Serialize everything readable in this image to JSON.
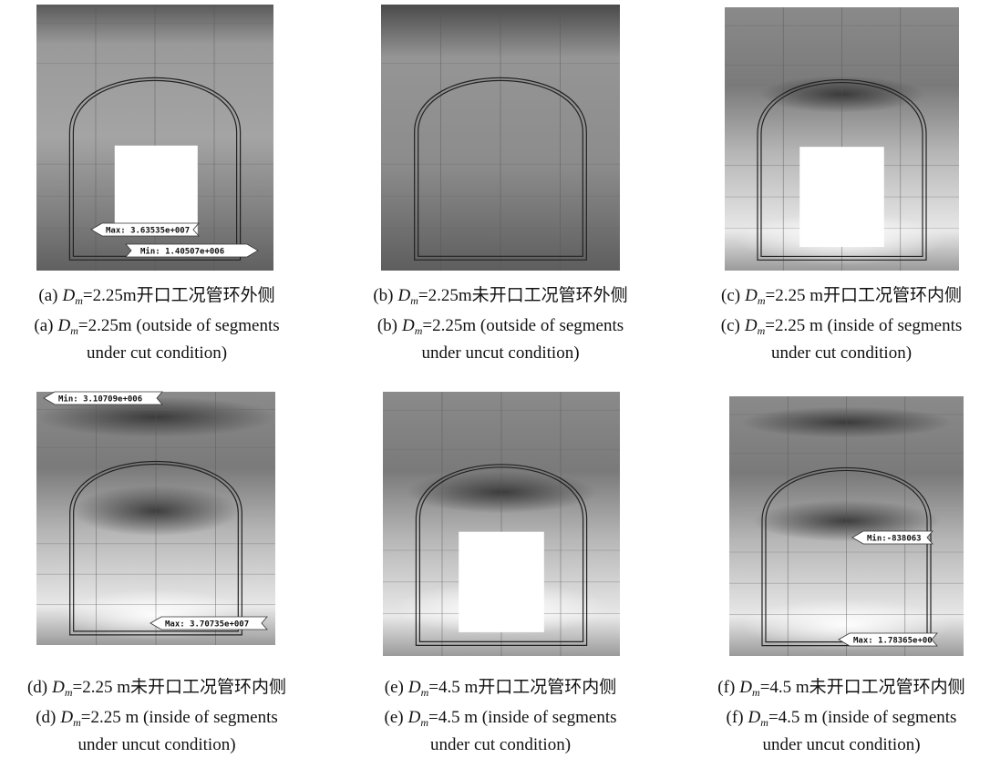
{
  "panels": [
    {
      "caption_cn": [
        "(a)",
        "D",
        "m",
        "=2.25m开口工况管环外侧"
      ],
      "caption_en": [
        "(a)",
        "D",
        "m",
        "=2.25m (outside of segments"
      ],
      "caption_en2": "under cut condition)",
      "labels": [
        "Max: 3.63535e+007",
        "Min: 1.40507e+006"
      ]
    },
    {
      "caption_cn": [
        "(b)",
        "D",
        "m",
        "=2.25m未开口工况管环外侧"
      ],
      "caption_en": [
        "(b)",
        "D",
        "m",
        "=2.25m (outside of segments"
      ],
      "caption_en2": "under uncut condition)",
      "labels": []
    },
    {
      "caption_cn": [
        "(c)",
        "D",
        "m",
        "=2.25 m开口工况管环内侧"
      ],
      "caption_en": [
        "(c)",
        "D",
        "m",
        "=2.25 m (inside of segments"
      ],
      "caption_en2": "under cut condition)",
      "labels": []
    },
    {
      "caption_cn": [
        "(d)",
        "D",
        "m",
        "=2.25 m未开口工况管环内侧"
      ],
      "caption_en": [
        "(d)",
        "D",
        "m",
        "=2.25 m (inside of segments"
      ],
      "caption_en2": "under uncut condition)",
      "labels": [
        "Min: 3.10709e+006",
        "Max: 3.70735e+007"
      ]
    },
    {
      "caption_cn": [
        "(e)",
        "D",
        "m",
        "=4.5 m开口工况管环内侧"
      ],
      "caption_en": [
        "(e)",
        "D",
        "m",
        "=4.5 m (inside of segments"
      ],
      "caption_en2": "under cut condition)",
      "labels": []
    },
    {
      "caption_cn": [
        "(f)",
        "D",
        "m",
        "=4.5 m未开口工况管环内侧"
      ],
      "caption_en": [
        "(f)",
        "D",
        "m",
        "=4.5 m (inside of segments"
      ],
      "caption_en2": "under uncut condition)",
      "labels": [
        "Min:-838063",
        "Max: 1.78365e+00"
      ]
    }
  ]
}
